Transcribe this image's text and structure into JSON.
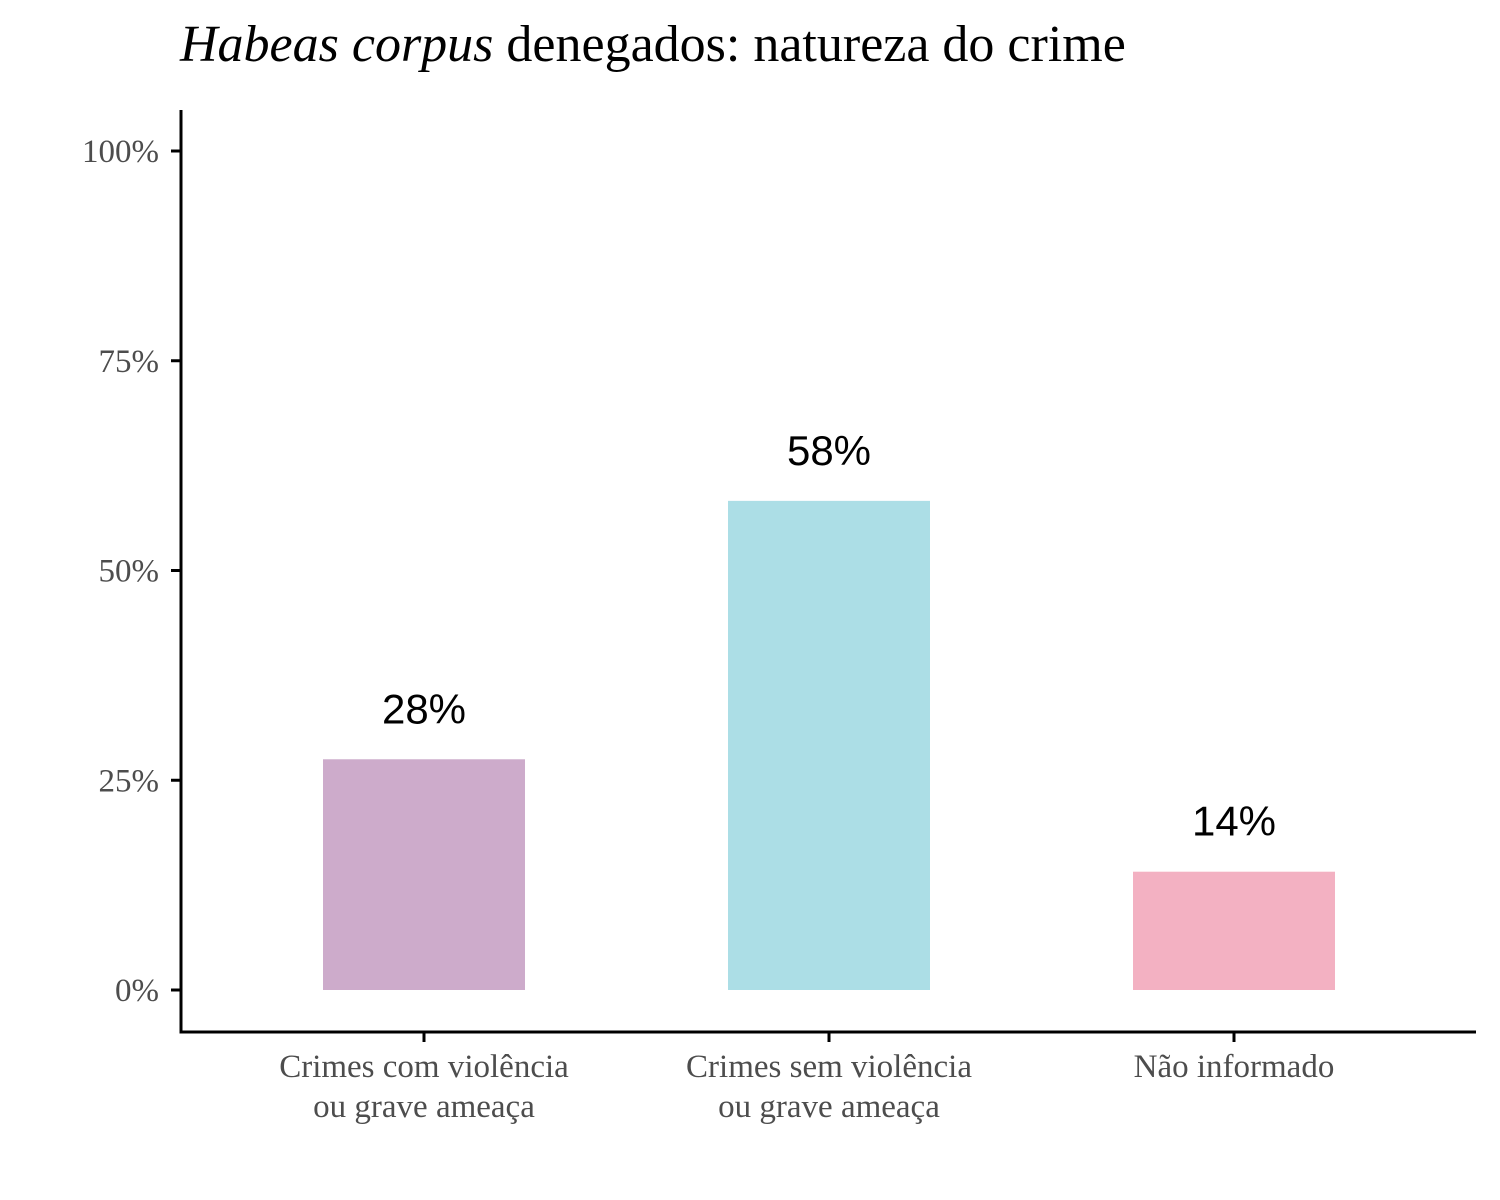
{
  "chart_data": {
    "type": "bar",
    "title_italic": "Habeas corpus",
    "title_rest": " denegados: natureza do crime",
    "categories": [
      [
        "Crimes com violência",
        "ou grave ameaça"
      ],
      [
        "Crimes sem violência",
        "ou grave ameaça"
      ],
      [
        "Não informado"
      ]
    ],
    "values": [
      27.5,
      58.3,
      14.1
    ],
    "data_labels": [
      "28%",
      "58%",
      "14%"
    ],
    "colors": [
      "#cdabcb",
      "#acdee6",
      "#f3b1c2"
    ],
    "ylim": [
      0,
      100
    ],
    "yticks": [
      0,
      25,
      50,
      75,
      100
    ],
    "ytick_labels": [
      "0%",
      "25%",
      "50%",
      "75%",
      "100%"
    ],
    "xlabel": "",
    "ylabel": "",
    "grid": false,
    "legend": "none"
  }
}
